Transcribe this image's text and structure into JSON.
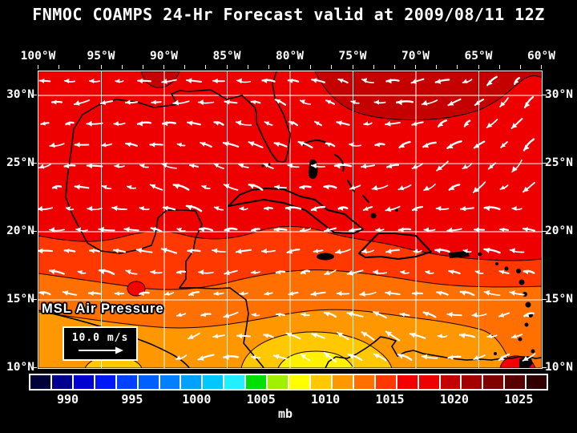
{
  "title": "FNMOC COAMPS 24-Hr Forecast valid at 2009/08/11 12Z",
  "axes": {
    "lon_labels": [
      "100°W",
      "95°W",
      "90°W",
      "85°W",
      "80°W",
      "75°W",
      "70°W",
      "65°W",
      "60°W"
    ],
    "lat_labels": [
      "30°N",
      "25°N",
      "20°N",
      "15°N",
      "10°N"
    ]
  },
  "overlay": {
    "field_label": "MSL Air Pressure",
    "wind_scale_value": "10.0 m/s"
  },
  "colorbar": {
    "unit": "mb",
    "tick_labels": [
      "990",
      "995",
      "1000",
      "1005",
      "1010",
      "1015",
      "1020",
      "1025"
    ],
    "cell_colors": [
      "#000038",
      "#000090",
      "#0000d0",
      "#0018f8",
      "#0040ff",
      "#0060ff",
      "#0080ff",
      "#00a0ff",
      "#00c8ff",
      "#20f0ff",
      "#00e000",
      "#a0f000",
      "#ffff00",
      "#ffc800",
      "#ff9800",
      "#ff7000",
      "#ff3800",
      "#f40000",
      "#ee0000",
      "#c40000",
      "#a40000",
      "#800000",
      "#580000",
      "#300000"
    ]
  },
  "colors": {
    "background": "#000000",
    "text": "#ffffff",
    "map_border": "#ffffff",
    "grid_line": "#ffffff",
    "coastline": "#000000",
    "wind_vector": "#ffffff",
    "bands": {
      "base_red": "#ee0000",
      "high_dark_red": "#c40000",
      "band_1014": "#ff3800",
      "band_1012": "#ff7000",
      "band_1011": "#ff9800",
      "band_gold": "#ffc800",
      "band_yellow": "#fff200",
      "red_patch": "#f40000"
    }
  }
}
